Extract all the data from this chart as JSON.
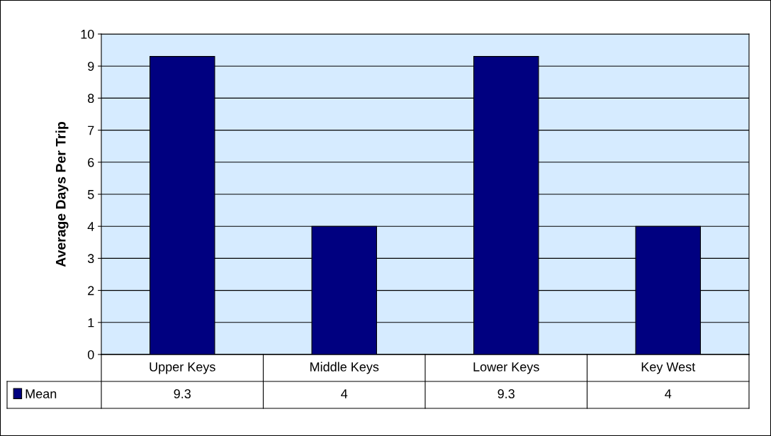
{
  "chart_data": {
    "type": "bar",
    "ylabel": "Average Days Per Trip",
    "categories": [
      "Upper Keys",
      "Middle Keys",
      "Lower Keys",
      "Key West"
    ],
    "series": [
      {
        "name": "Mean",
        "color": "#000080",
        "values": [
          9.3,
          4,
          9.3,
          4
        ]
      }
    ],
    "ylim": [
      0,
      10
    ],
    "yticks": [
      0,
      1,
      2,
      3,
      4,
      5,
      6,
      7,
      8,
      9,
      10
    ],
    "grid": "y",
    "data_labels": true,
    "legend": "bottom left"
  }
}
